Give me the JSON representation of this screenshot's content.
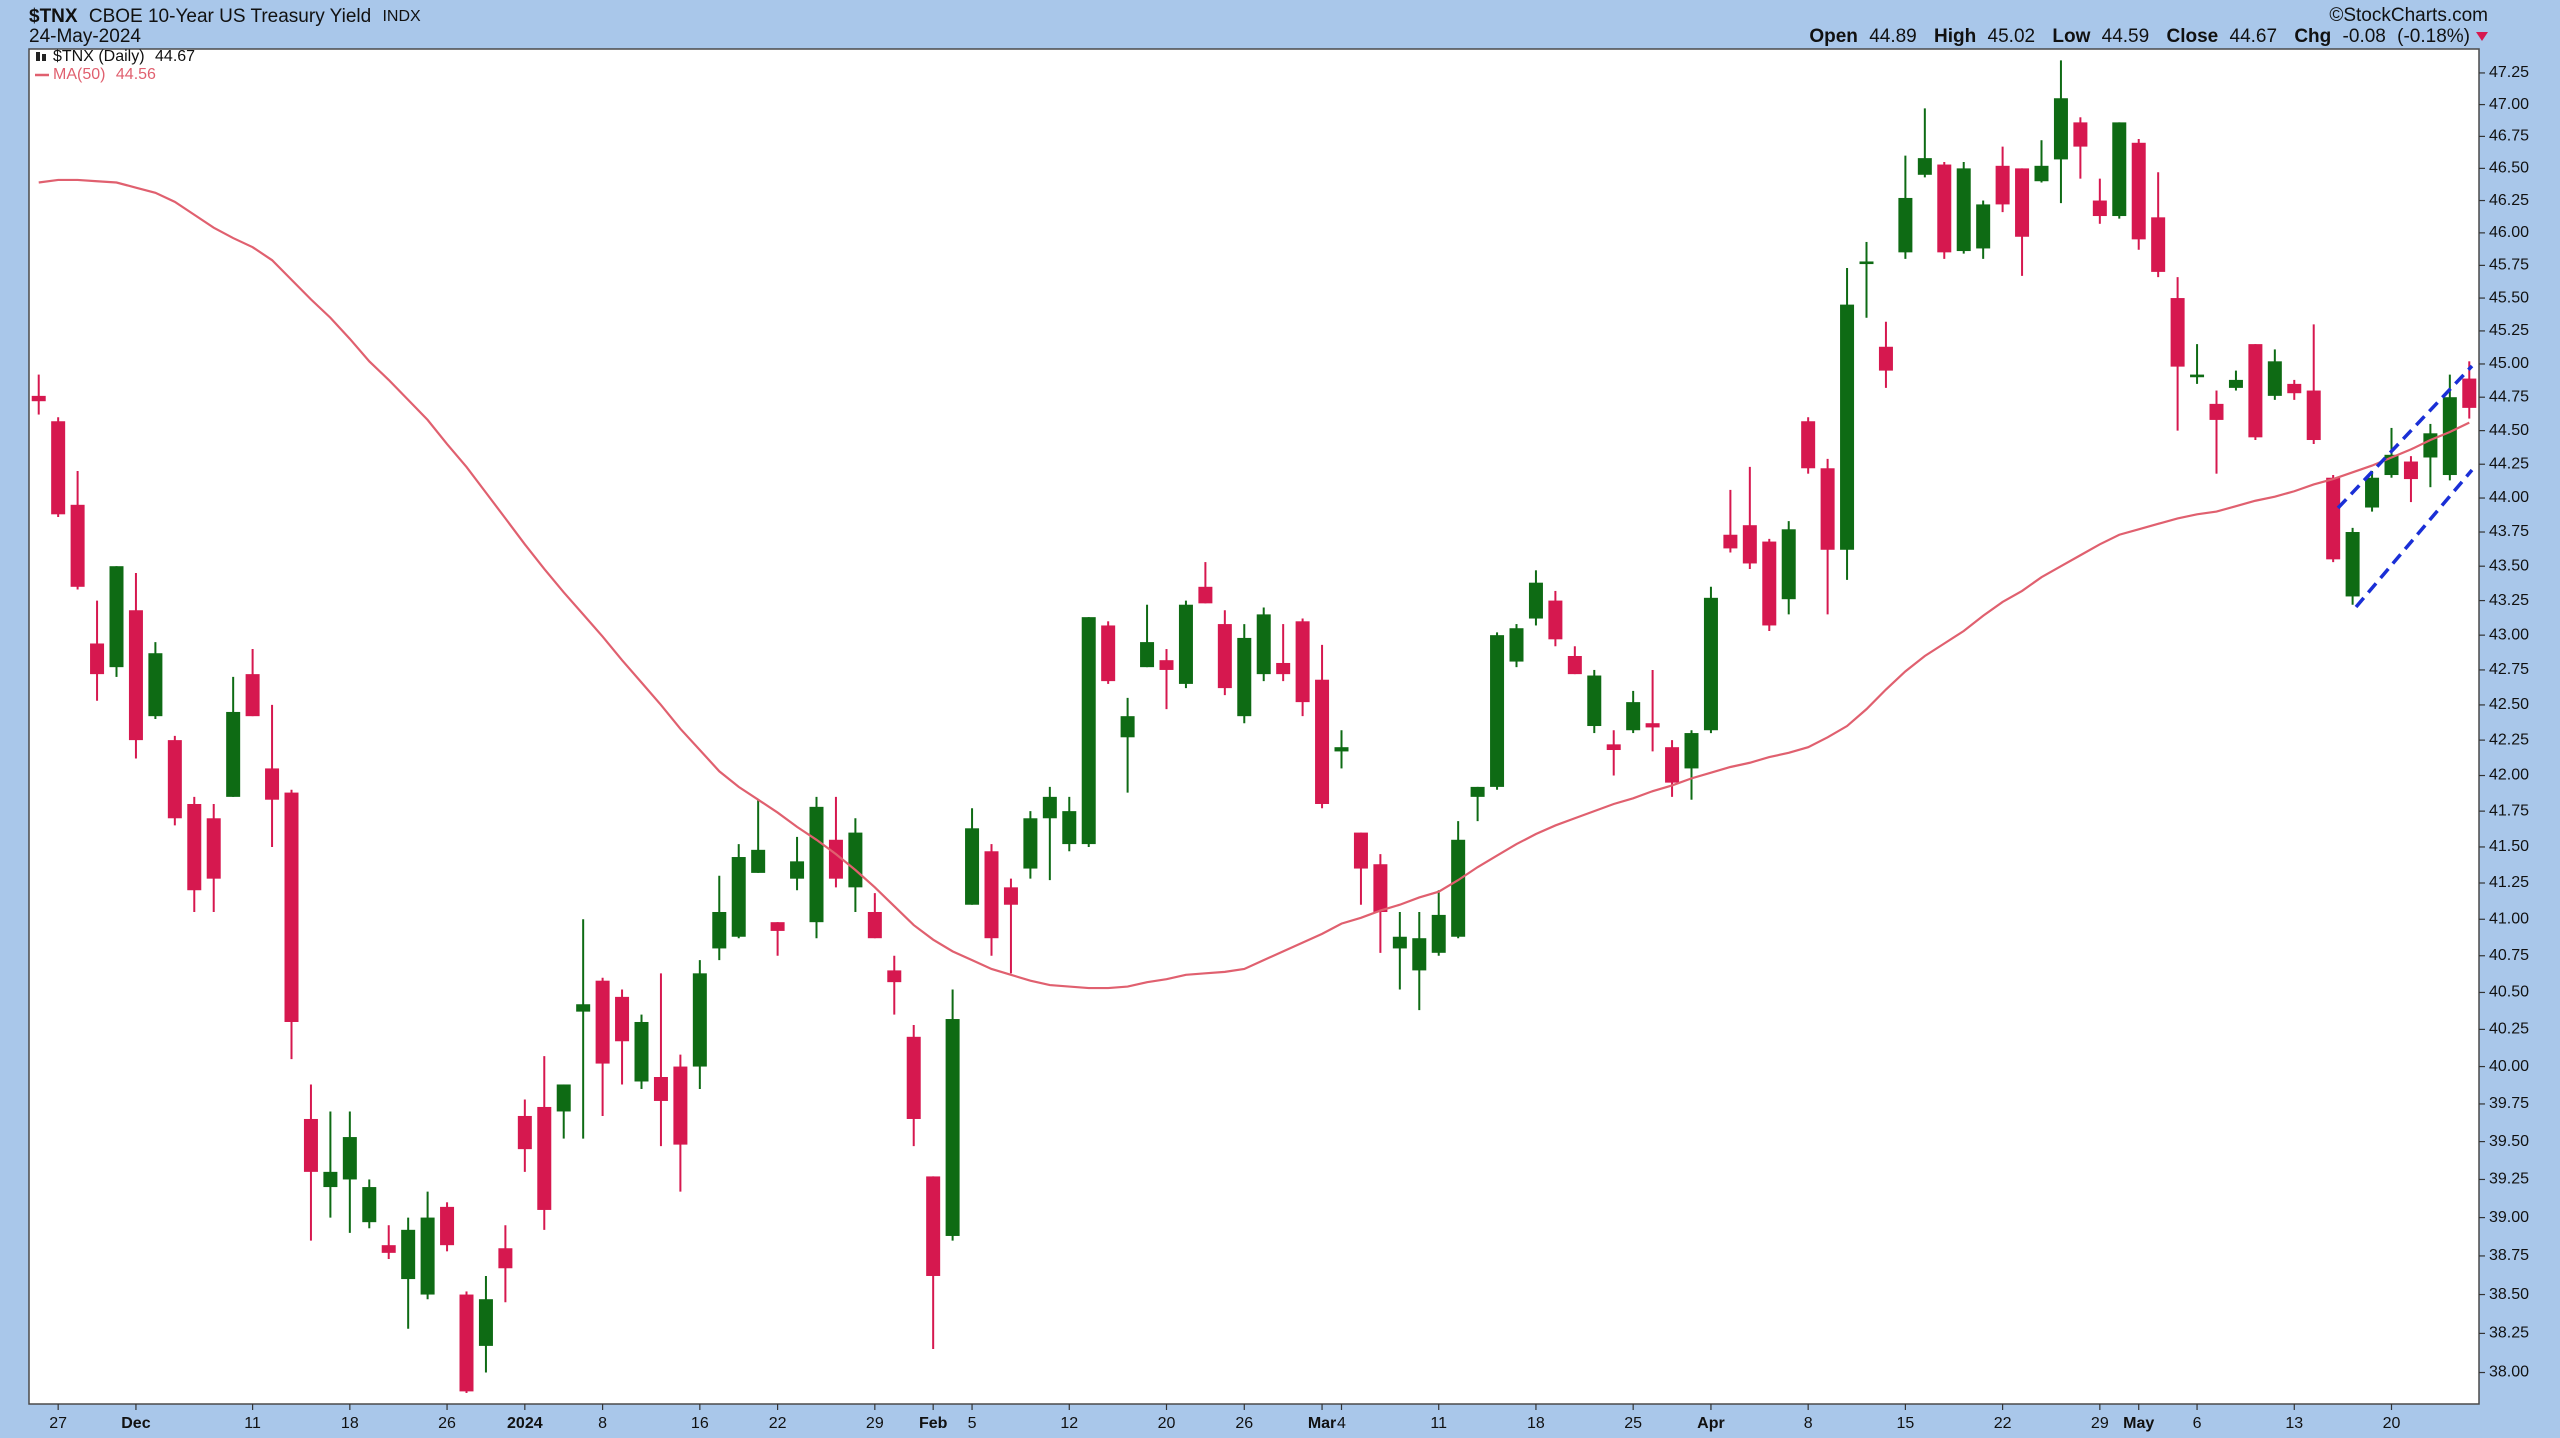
{
  "chart_data": {
    "type": "candlestick",
    "title": "$TNX",
    "subtitle": "CBOE 10-Year US Treasury Yield",
    "exchange": "INDX",
    "date": "24-May-2024",
    "source": "©StockCharts.com",
    "summary_labels": [
      "Open",
      "High",
      "Low",
      "Close",
      "Chg"
    ],
    "change": -0.08,
    "change_pct": {
      "value": -0.18,
      "label": "(-0.18%)"
    },
    "log_scale": true,
    "grid": false,
    "y_axis_side": "right",
    "ylim": [
      37.8,
      47.44
    ],
    "yticks": [
      {
        "value": 38,
        "label": "38.00"
      },
      {
        "value": 38.25,
        "label": "38.25"
      },
      {
        "value": 38.5,
        "label": "38.50"
      },
      {
        "value": 38.75,
        "label": "38.75"
      },
      {
        "value": 39,
        "label": "39.00"
      },
      {
        "value": 39.25,
        "label": "39.25"
      },
      {
        "value": 39.5,
        "label": "39.50"
      },
      {
        "value": 39.75,
        "label": "39.75"
      },
      {
        "value": 40,
        "label": "40.00"
      },
      {
        "value": 40.25,
        "label": "40.25"
      },
      {
        "value": 40.5,
        "label": "40.50"
      },
      {
        "value": 40.75,
        "label": "40.75"
      },
      {
        "value": 41,
        "label": "41.00"
      },
      {
        "value": 41.25,
        "label": "41.25"
      },
      {
        "value": 41.5,
        "label": "41.50"
      },
      {
        "value": 41.75,
        "label": "41.75"
      },
      {
        "value": 42,
        "label": "42.00"
      },
      {
        "value": 42.25,
        "label": "42.25"
      },
      {
        "value": 42.5,
        "label": "42.50"
      },
      {
        "value": 42.75,
        "label": "42.75"
      },
      {
        "value": 43,
        "label": "43.00"
      },
      {
        "value": 43.25,
        "label": "43.25"
      },
      {
        "value": 43.5,
        "label": "43.50"
      },
      {
        "value": 43.75,
        "label": "43.75"
      },
      {
        "value": 44,
        "label": "44.00"
      },
      {
        "value": 44.25,
        "label": "44.25"
      },
      {
        "value": 44.5,
        "label": "44.50"
      },
      {
        "value": 44.75,
        "label": "44.75"
      },
      {
        "value": 45,
        "label": "45.00"
      },
      {
        "value": 45.25,
        "label": "45.25"
      },
      {
        "value": 45.5,
        "label": "45.50"
      },
      {
        "value": 45.75,
        "label": "45.75"
      },
      {
        "value": 46,
        "label": "46.00"
      },
      {
        "value": 46.25,
        "label": "46.25"
      },
      {
        "value": 46.5,
        "label": "46.50"
      },
      {
        "value": 46.75,
        "label": "46.75"
      },
      {
        "value": 47,
        "label": "47.00"
      },
      {
        "value": 47.25,
        "label": "47.25"
      }
    ],
    "categories": [
      null,
      "27",
      null,
      null,
      null,
      "Dec",
      null,
      null,
      null,
      null,
      null,
      "11",
      null,
      null,
      null,
      null,
      "18",
      null,
      null,
      null,
      null,
      "26",
      null,
      null,
      null,
      "2024",
      null,
      null,
      null,
      "8",
      null,
      null,
      null,
      null,
      "16",
      null,
      null,
      null,
      "22",
      null,
      null,
      null,
      null,
      "29",
      null,
      null,
      "Feb",
      null,
      "5",
      null,
      null,
      null,
      null,
      "12",
      null,
      null,
      null,
      null,
      "20",
      null,
      null,
      null,
      "26",
      null,
      null,
      null,
      "Mar",
      "4",
      null,
      null,
      null,
      null,
      "11",
      null,
      null,
      null,
      null,
      "18",
      null,
      null,
      null,
      null,
      "25",
      null,
      null,
      null,
      "Apr",
      null,
      null,
      null,
      null,
      "8",
      null,
      null,
      null,
      null,
      "15",
      null,
      null,
      null,
      null,
      "22",
      null,
      null,
      null,
      null,
      "29",
      null,
      "May",
      null,
      null,
      "6",
      null,
      null,
      null,
      null,
      "13",
      null,
      null,
      null,
      null,
      "20",
      null,
      null,
      null,
      null
    ],
    "series": [
      {
        "name": "$TNX (Daily)",
        "type": "candlestick",
        "up_color": "#0e6b14",
        "down_color": "#d6184f",
        "open": [
          44.76,
          44.57,
          43.95,
          42.94,
          42.77,
          43.18,
          42.42,
          42.25,
          41.8,
          41.7,
          41.85,
          42.72,
          42.05,
          41.88,
          39.65,
          39.2,
          39.25,
          38.97,
          38.82,
          38.6,
          38.5,
          39.07,
          38.5,
          38.17,
          38.8,
          39.67,
          39.73,
          39.7,
          40.37,
          40.58,
          40.47,
          39.9,
          39.93,
          40.0,
          40.0,
          40.8,
          40.88,
          41.32,
          40.98,
          41.28,
          40.98,
          41.55,
          41.22,
          41.05,
          40.65,
          40.2,
          39.27,
          38.88,
          41.1,
          41.47,
          41.22,
          41.35,
          41.7,
          41.52,
          41.52,
          43.07,
          42.27,
          42.77,
          42.82,
          42.65,
          43.35,
          43.08,
          42.42,
          42.72,
          42.8,
          43.1,
          42.68,
          42.17,
          41.6,
          41.38,
          40.8,
          40.65,
          40.77,
          40.88,
          41.85,
          41.92,
          42.81,
          43.12,
          43.25,
          42.85,
          42.35,
          42.22,
          42.32,
          42.37,
          42.2,
          42.05,
          42.32,
          43.73,
          43.8,
          43.68,
          43.26,
          44.57,
          44.22,
          43.62,
          45.76,
          45.13,
          45.85,
          46.45,
          46.53,
          45.86,
          45.88,
          46.52,
          46.5,
          46.4,
          46.57,
          46.86,
          46.25,
          46.13,
          46.7,
          46.12,
          45.5,
          44.9,
          44.7,
          44.82,
          45.15,
          44.76,
          44.85,
          44.8,
          44.15,
          43.28,
          43.93,
          44.17,
          44.27,
          44.3,
          44.17,
          44.89
        ],
        "high": [
          44.92,
          44.6,
          44.2,
          43.25,
          43.5,
          43.45,
          42.95,
          42.28,
          41.85,
          41.8,
          42.7,
          42.9,
          42.5,
          41.9,
          39.88,
          39.7,
          39.7,
          39.25,
          38.95,
          39.0,
          39.17,
          39.1,
          38.52,
          38.62,
          38.95,
          39.78,
          40.07,
          39.88,
          41.0,
          40.6,
          40.52,
          40.35,
          40.63,
          40.08,
          40.72,
          41.3,
          41.52,
          41.83,
          40.98,
          41.57,
          41.85,
          41.85,
          41.7,
          41.18,
          40.75,
          40.28,
          39.27,
          40.52,
          41.77,
          41.52,
          41.28,
          41.75,
          41.92,
          41.85,
          43.13,
          43.1,
          42.55,
          43.22,
          42.9,
          43.25,
          43.53,
          43.18,
          43.08,
          43.2,
          43.08,
          43.12,
          42.93,
          42.32,
          41.6,
          41.45,
          41.05,
          41.05,
          41.2,
          41.68,
          41.92,
          43.02,
          43.08,
          43.47,
          43.32,
          42.92,
          42.75,
          42.32,
          42.6,
          42.75,
          42.25,
          42.32,
          43.35,
          44.06,
          44.23,
          43.7,
          43.83,
          44.6,
          44.29,
          45.73,
          45.93,
          45.32,
          46.6,
          46.97,
          46.55,
          46.55,
          46.25,
          46.67,
          46.5,
          46.72,
          47.35,
          46.9,
          46.42,
          46.86,
          46.73,
          46.47,
          45.66,
          45.15,
          44.8,
          44.95,
          45.15,
          45.11,
          44.88,
          45.3,
          44.17,
          43.78,
          44.2,
          44.52,
          44.31,
          44.55,
          44.92,
          45.02
        ],
        "low": [
          44.62,
          43.86,
          43.33,
          42.53,
          42.7,
          42.12,
          42.4,
          41.65,
          41.05,
          41.05,
          41.85,
          42.42,
          41.5,
          40.05,
          38.85,
          39.0,
          38.9,
          38.93,
          38.73,
          38.28,
          38.47,
          38.78,
          37.87,
          38.0,
          38.45,
          39.3,
          38.92,
          39.52,
          39.52,
          39.67,
          39.88,
          39.85,
          39.47,
          39.17,
          39.85,
          40.72,
          40.87,
          41.32,
          40.75,
          41.2,
          40.87,
          41.22,
          41.05,
          40.87,
          40.35,
          39.47,
          38.15,
          38.85,
          41.1,
          40.75,
          40.63,
          41.28,
          41.27,
          41.47,
          41.5,
          42.65,
          41.88,
          42.77,
          42.47,
          42.62,
          43.23,
          42.57,
          42.37,
          42.67,
          42.67,
          42.42,
          41.77,
          42.05,
          41.1,
          40.77,
          40.52,
          40.38,
          40.75,
          40.87,
          41.68,
          41.9,
          42.77,
          43.07,
          42.92,
          42.72,
          42.3,
          42.0,
          42.3,
          42.17,
          41.85,
          41.83,
          42.3,
          43.6,
          43.48,
          43.03,
          43.15,
          44.18,
          43.15,
          43.4,
          45.35,
          44.82,
          45.8,
          46.43,
          45.8,
          45.84,
          45.8,
          46.16,
          45.67,
          46.39,
          46.23,
          46.42,
          46.07,
          46.11,
          45.87,
          45.66,
          44.5,
          44.85,
          44.18,
          44.8,
          44.43,
          44.73,
          44.73,
          44.4,
          43.53,
          43.22,
          43.9,
          44.15,
          43.97,
          44.08,
          44.13,
          44.59
        ],
        "close": [
          44.72,
          43.88,
          43.35,
          42.72,
          43.5,
          42.25,
          42.87,
          41.7,
          41.2,
          41.28,
          42.45,
          42.42,
          41.83,
          40.3,
          39.3,
          39.3,
          39.53,
          39.2,
          38.77,
          38.92,
          39.0,
          38.82,
          37.88,
          38.47,
          38.67,
          39.45,
          39.05,
          39.88,
          40.42,
          40.02,
          40.17,
          40.3,
          39.77,
          39.48,
          40.63,
          41.05,
          41.43,
          41.48,
          40.92,
          41.4,
          41.78,
          41.28,
          41.6,
          40.87,
          40.57,
          39.65,
          38.62,
          40.32,
          41.63,
          40.87,
          41.1,
          41.7,
          41.85,
          41.75,
          43.13,
          42.67,
          42.42,
          42.95,
          42.75,
          43.22,
          43.23,
          42.62,
          42.98,
          43.15,
          42.72,
          42.52,
          41.8,
          42.2,
          41.35,
          41.05,
          40.88,
          40.87,
          41.03,
          41.55,
          41.92,
          43.0,
          43.05,
          43.38,
          42.97,
          42.72,
          42.71,
          42.18,
          42.52,
          42.34,
          41.95,
          42.3,
          43.27,
          43.63,
          43.52,
          43.07,
          43.77,
          44.22,
          43.62,
          45.45,
          45.78,
          44.95,
          46.27,
          46.58,
          45.85,
          46.5,
          46.22,
          46.22,
          45.97,
          46.52,
          47.05,
          46.67,
          46.13,
          46.86,
          45.95,
          45.7,
          44.98,
          44.92,
          44.58,
          44.88,
          44.45,
          45.02,
          44.78,
          44.43,
          43.55,
          43.75,
          44.15,
          44.32,
          44.14,
          44.48,
          44.75,
          44.67
        ]
      },
      {
        "name": "MA(50)",
        "type": "line",
        "color": "#e0606f",
        "values": [
          46.39,
          46.41,
          46.41,
          46.4,
          46.39,
          46.35,
          46.31,
          46.24,
          46.14,
          46.04,
          45.96,
          45.89,
          45.79,
          45.64,
          45.49,
          45.35,
          45.19,
          45.02,
          44.88,
          44.73,
          44.58,
          44.4,
          44.23,
          44.04,
          43.85,
          43.66,
          43.48,
          43.31,
          43.15,
          42.99,
          42.82,
          42.66,
          42.5,
          42.33,
          42.18,
          42.03,
          41.92,
          41.83,
          41.74,
          41.64,
          41.55,
          41.45,
          41.34,
          41.22,
          41.09,
          40.96,
          40.86,
          40.78,
          40.72,
          40.66,
          40.62,
          40.58,
          40.55,
          40.54,
          40.53,
          40.53,
          40.54,
          40.57,
          40.59,
          40.62,
          40.63,
          40.64,
          40.66,
          40.72,
          40.78,
          40.84,
          40.9,
          40.97,
          41.01,
          41.06,
          41.1,
          41.15,
          41.19,
          41.27,
          41.36,
          41.44,
          41.52,
          41.59,
          41.65,
          41.7,
          41.75,
          41.8,
          41.84,
          41.89,
          41.93,
          41.98,
          42.02,
          42.06,
          42.09,
          42.13,
          42.16,
          42.2,
          42.27,
          42.35,
          42.47,
          42.61,
          42.74,
          42.85,
          42.94,
          43.03,
          43.14,
          43.24,
          43.32,
          43.42,
          43.5,
          43.58,
          43.66,
          43.73,
          43.77,
          43.81,
          43.85,
          43.88,
          43.9,
          43.94,
          43.98,
          44.01,
          44.05,
          44.1,
          44.14,
          44.19,
          44.24,
          44.3,
          44.36,
          44.43,
          44.49,
          44.56
        ]
      }
    ]
  }
}
